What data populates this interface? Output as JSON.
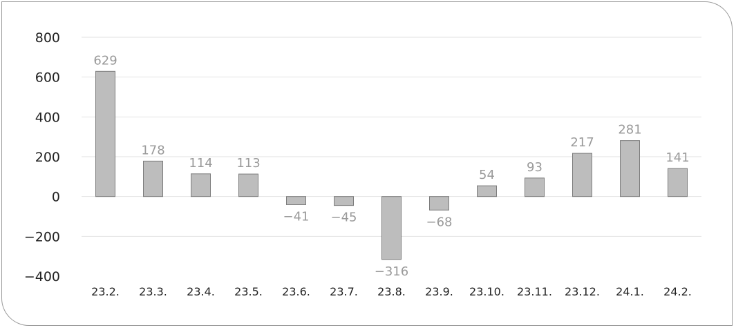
{
  "chart_data": {
    "type": "bar",
    "categories": [
      "23.2.",
      "23.3.",
      "23.4.",
      "23.5.",
      "23.6.",
      "23.7.",
      "23.8.",
      "23.9.",
      "23.10.",
      "23.11.",
      "23.12.",
      "24.1.",
      "24.2."
    ],
    "values": [
      629,
      178,
      114,
      113,
      -41,
      -45,
      -316,
      -68,
      54,
      93,
      217,
      281,
      141
    ],
    "value_labels": [
      "629",
      "178",
      "114",
      "113",
      "−41",
      "−45",
      "−316",
      "−68",
      "54",
      "93",
      "217",
      "281",
      "141"
    ],
    "y_ticks": [
      800,
      600,
      400,
      200,
      0,
      -200,
      -400
    ],
    "y_tick_labels": [
      "800",
      "600",
      "400",
      "200",
      "0",
      "−200",
      "−400"
    ],
    "ylim": [
      -400,
      800
    ],
    "grid": true,
    "legend": "none",
    "title": "",
    "xlabel": "",
    "ylabel": "",
    "colors": {
      "bar_fill": "#bdbdbd",
      "bar_edge": "#7c7c7c",
      "data_label": "#9a9a9a",
      "grid": "#e2e2e2"
    }
  }
}
